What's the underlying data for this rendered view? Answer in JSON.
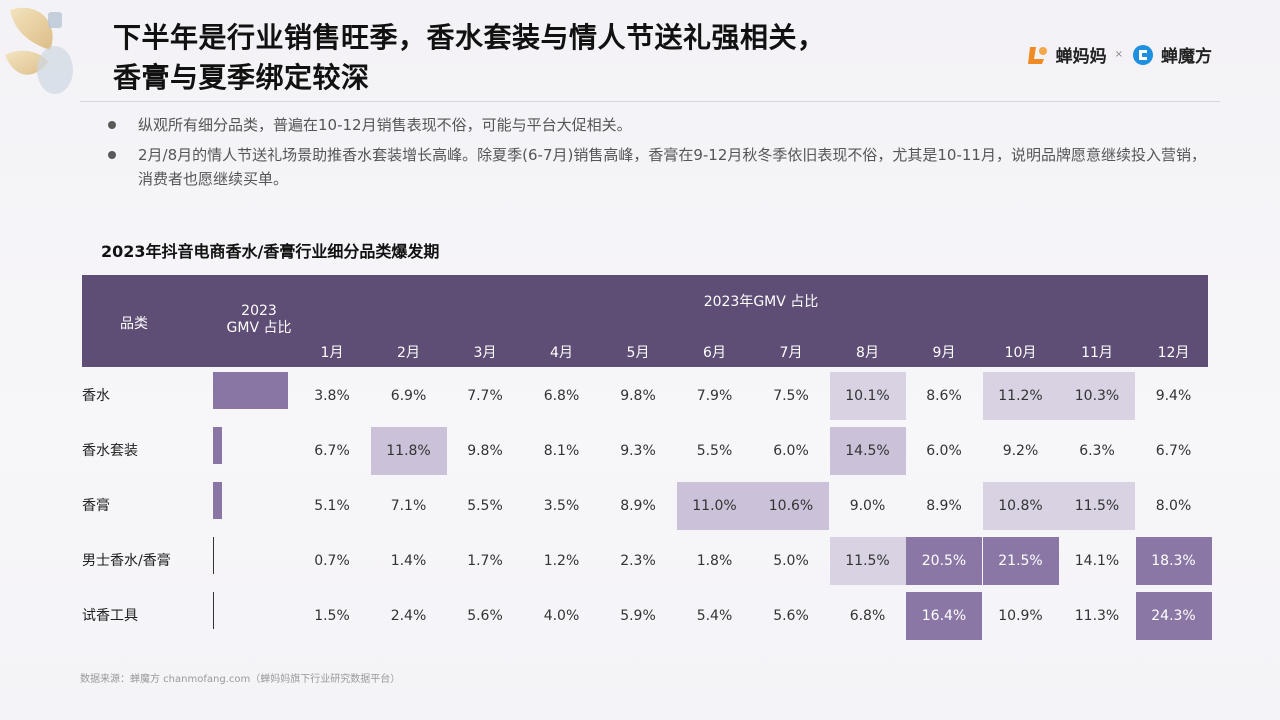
{
  "header": {
    "title_line1": "下半年是行业销售旺季，香水套装与情人节送礼强相关，",
    "title_line2": "香膏与夏季绑定较深",
    "logo_primary": "蝉妈妈",
    "logo_separator": "×",
    "logo_secondary": "蝉魔方"
  },
  "bullets": [
    "纵观所有细分品类，普遍在10-12月销售表现不俗，可能与平台大促相关。",
    "2月/8月的情人节送礼场景助推香水套装增长高峰。除夏季(6-7月)销售高峰，香膏在9-12月秋冬季依旧表现不俗，尤其是10-11月，说明品牌愿意继续投入营销，消费者也愿继续买单。"
  ],
  "chart_data": {
    "type": "table",
    "title": "2023年抖音电商香水/香膏行业细分品类爆发期",
    "header_category": "品类",
    "header_gmv": "2023\nGMV 占比",
    "header_months_group": "2023年GMV 占比",
    "months": [
      "1月",
      "2月",
      "3月",
      "4月",
      "5月",
      "6月",
      "7月",
      "8月",
      "9月",
      "10月",
      "11月",
      "12月"
    ],
    "rows": [
      {
        "name": "香水",
        "gmv_share": 0.76,
        "values": [
          "3.8%",
          "6.9%",
          "7.7%",
          "6.8%",
          "9.8%",
          "7.9%",
          "7.5%",
          "10.1%",
          "8.6%",
          "11.2%",
          "10.3%",
          "9.4%"
        ],
        "highlight": [
          0,
          0,
          0,
          0,
          0,
          0,
          0,
          1,
          0,
          1,
          1,
          0
        ]
      },
      {
        "name": "香水套装",
        "gmv_share": 0.09,
        "values": [
          "6.7%",
          "11.8%",
          "9.8%",
          "8.1%",
          "9.3%",
          "5.5%",
          "6.0%",
          "14.5%",
          "6.0%",
          "9.2%",
          "6.3%",
          "6.7%"
        ],
        "highlight": [
          0,
          2,
          0,
          0,
          0,
          0,
          0,
          2,
          0,
          0,
          0,
          0
        ]
      },
      {
        "name": "香膏",
        "gmv_share": 0.09,
        "values": [
          "5.1%",
          "7.1%",
          "5.5%",
          "3.5%",
          "8.9%",
          "11.0%",
          "10.6%",
          "9.0%",
          "8.9%",
          "10.8%",
          "11.5%",
          "8.0%"
        ],
        "highlight": [
          0,
          0,
          0,
          0,
          0,
          2,
          2,
          0,
          0,
          1,
          1,
          0
        ]
      },
      {
        "name": "男士香水/香膏",
        "gmv_share": 0.02,
        "values": [
          "0.7%",
          "1.4%",
          "1.7%",
          "1.2%",
          "2.3%",
          "1.8%",
          "5.0%",
          "11.5%",
          "20.5%",
          "21.5%",
          "14.1%",
          "18.3%"
        ],
        "highlight": [
          0,
          0,
          0,
          0,
          0,
          0,
          0,
          1,
          3,
          3,
          0,
          3
        ]
      },
      {
        "name": "试香工具",
        "gmv_share": 0.02,
        "values": [
          "1.5%",
          "2.4%",
          "5.6%",
          "4.0%",
          "5.9%",
          "5.4%",
          "5.6%",
          "6.8%",
          "16.4%",
          "10.9%",
          "11.3%",
          "24.3%"
        ],
        "highlight": [
          0,
          0,
          0,
          0,
          0,
          0,
          0,
          0,
          3,
          0,
          0,
          3
        ]
      }
    ],
    "colors": {
      "header": "#5e4d74",
      "bar": "#8a76a5",
      "light": "#d9d2e3",
      "mid": "#cbc2d9",
      "strong": "#8b77a5"
    }
  },
  "footer": "数据来源：蝉魔方 chanmofang.com（蝉妈妈旗下行业研究数据平台）"
}
